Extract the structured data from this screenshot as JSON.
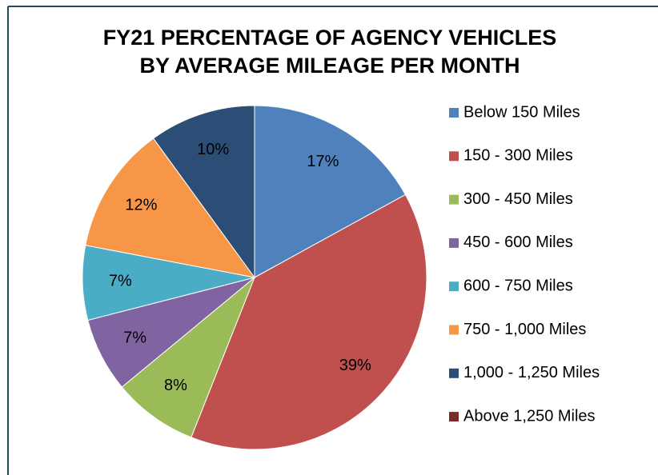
{
  "chart_data": {
    "type": "pie",
    "title": "FY21 PERCENTAGE OF AGENCY VEHICLES BY AVERAGE MILEAGE PER MONTH",
    "categories": [
      "Below 150 Miles",
      "150 - 300 Miles",
      "300 - 450 Miles",
      "450 - 600 Miles",
      "600 - 750 Miles",
      "750 - 1,000 Miles",
      "1,000 - 1,250 Miles",
      "Above 1,250 Miles"
    ],
    "values": [
      17,
      39,
      8,
      7,
      7,
      12,
      10,
      0
    ],
    "value_labels": [
      "17%",
      "39%",
      "8%",
      "7%",
      "7%",
      "12%",
      "10%",
      null
    ],
    "colors": [
      "#4f81bd",
      "#c0504d",
      "#9bbb59",
      "#8064a2",
      "#4bacc6",
      "#f79646",
      "#2c4d75",
      "#772c2a"
    ],
    "legend": "right"
  }
}
